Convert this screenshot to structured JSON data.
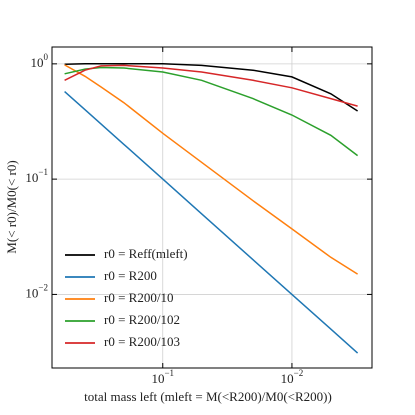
{
  "chart_data": {
    "type": "line",
    "xlabel": "total mass left (mleft = M(<R200)/M0(<R200))",
    "ylabel": "M(< r0)/M0(< r0)",
    "x": [
      0.575,
      0.4,
      0.3,
      0.2,
      0.1,
      0.05,
      0.02,
      0.01,
      0.005,
      0.0031
    ],
    "series": [
      {
        "name": "r0 = Reff(mleft)",
        "color": "#000000",
        "values": [
          0.99,
          1.0,
          1.0,
          1.0,
          1.0,
          0.97,
          0.88,
          0.77,
          0.55,
          0.39
        ]
      },
      {
        "name": "r0 = R200",
        "color": "#1f77b4",
        "values": [
          0.575,
          0.4,
          0.3,
          0.2,
          0.1,
          0.05,
          0.02,
          0.01,
          0.005,
          0.0031
        ]
      },
      {
        "name": "r0 = R200/10",
        "color": "#ff7f0e",
        "values": [
          0.98,
          0.78,
          0.63,
          0.46,
          0.25,
          0.14,
          0.065,
          0.037,
          0.021,
          0.015
        ]
      },
      {
        "name": "r0 = R200/102",
        "color": "#2ca02c",
        "values": [
          0.82,
          0.9,
          0.93,
          0.92,
          0.85,
          0.72,
          0.5,
          0.36,
          0.24,
          0.16
        ]
      },
      {
        "name": "r0 = R200/103",
        "color": "#d62728",
        "values": [
          0.72,
          0.88,
          0.96,
          0.97,
          0.92,
          0.85,
          0.72,
          0.62,
          0.5,
          0.43
        ]
      }
    ],
    "xscale": "log",
    "yscale": "log",
    "xlim": [
      0.72,
      0.0024
    ],
    "ylim": [
      1.4,
      0.0023
    ],
    "xticks": [
      {
        "value": 0.1,
        "label": "10",
        "exp": "−1"
      },
      {
        "value": 0.01,
        "label": "10",
        "exp": "−2"
      }
    ],
    "yticks": [
      {
        "value": 1,
        "label": "10",
        "exp": "0"
      },
      {
        "value": 0.1,
        "label": "10",
        "exp": "−1"
      },
      {
        "value": 0.01,
        "label": "10",
        "exp": "−2"
      }
    ],
    "grid": true,
    "legend": "lower left"
  }
}
